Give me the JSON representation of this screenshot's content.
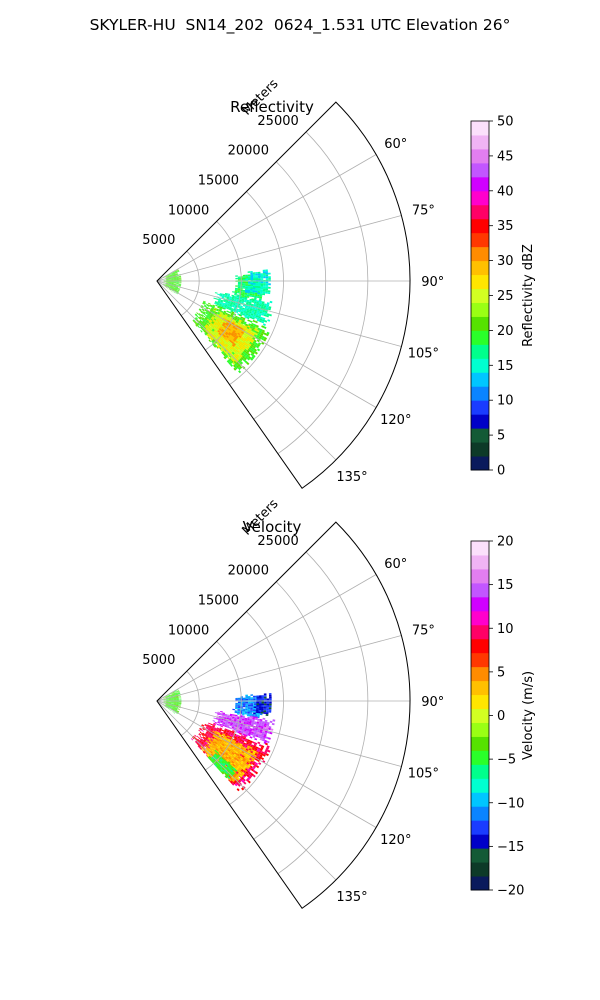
{
  "figure": {
    "title": "SKYLER-HU  SN14_202  0624_1.531 UTC Elevation 26°"
  },
  "chart_data": [
    {
      "type": "heatmap",
      "subtype": "polar-sector",
      "title": "Reflectivity",
      "radial_axis_label": "Meters",
      "radial_ticks": [
        5000,
        10000,
        15000,
        20000,
        25000
      ],
      "radial_tick_labels": [
        "5000",
        "10000",
        "15000",
        "20000",
        "25000"
      ],
      "radial_range": [
        0,
        30000
      ],
      "azimuth_range": [
        45,
        145
      ],
      "azimuth_ticks": [
        60,
        75,
        90,
        105,
        120,
        135
      ],
      "azimuth_tick_labels": [
        "60°",
        "75°",
        "90°",
        "105°",
        "120°",
        "135°"
      ],
      "grid": true,
      "colorbar": {
        "label": "Reflectivity dBZ",
        "range": [
          0,
          50
        ],
        "ticks": [
          0,
          5,
          10,
          15,
          20,
          25,
          30,
          35,
          40,
          45,
          50
        ],
        "tick_labels": [
          "0",
          "5",
          "10",
          "15",
          "20",
          "25",
          "30",
          "35",
          "40",
          "45",
          "50"
        ],
        "colors": [
          "#0a1a5c",
          "#0d3a28",
          "#135a36",
          "#0000c8",
          "#1a3cff",
          "#0a84ff",
          "#00c6ff",
          "#00ffd0",
          "#00ff8c",
          "#2aff2a",
          "#56e200",
          "#9aff14",
          "#d2ff22",
          "#ffe600",
          "#ffc000",
          "#ff8c00",
          "#ff3800",
          "#ff0000",
          "#ff0066",
          "#ff00cc",
          "#d000ff",
          "#c256ff",
          "#e27ef0",
          "#f0b4f4",
          "#fbe0fb"
        ]
      },
      "regions": [
        {
          "name": "north-echo",
          "r_range": [
            9000,
            12500
          ],
          "az_range": [
            86,
            101
          ],
          "value": 18
        },
        {
          "name": "north-echo-fringe",
          "r_range": [
            10500,
            13500
          ],
          "az_range": [
            84,
            97
          ],
          "value": 15
        },
        {
          "name": "central-echo",
          "r_range": [
            7000,
            14000
          ],
          "az_range": [
            100,
            112
          ],
          "value": 16
        },
        {
          "name": "main-cell-edge",
          "r_range": [
            6000,
            14500
          ],
          "az_range": [
            112,
            139
          ],
          "value": 20
        },
        {
          "name": "main-cell",
          "r_range": [
            7500,
            13500
          ],
          "az_range": [
            115,
            137
          ],
          "value": 26
        },
        {
          "name": "main-cell-core",
          "r_range": [
            9000,
            12000
          ],
          "az_range": [
            118,
            130
          ],
          "value": 30
        },
        {
          "name": "near-range-clutter",
          "r_range": [
            800,
            2700
          ],
          "az_range": [
            60,
            125
          ],
          "value": 20
        }
      ]
    },
    {
      "type": "heatmap",
      "subtype": "polar-sector",
      "title": "Velocity",
      "radial_axis_label": "Meters",
      "radial_ticks": [
        5000,
        10000,
        15000,
        20000,
        25000
      ],
      "radial_tick_labels": [
        "5000",
        "10000",
        "15000",
        "20000",
        "25000"
      ],
      "radial_range": [
        0,
        30000
      ],
      "azimuth_range": [
        45,
        145
      ],
      "azimuth_ticks": [
        60,
        75,
        90,
        105,
        120,
        135
      ],
      "azimuth_tick_labels": [
        "60°",
        "75°",
        "90°",
        "105°",
        "120°",
        "135°"
      ],
      "grid": true,
      "colorbar": {
        "label": "Velocity (m/s)",
        "range": [
          -20,
          20
        ],
        "ticks": [
          -20,
          -15,
          -10,
          -5,
          0,
          5,
          10,
          15,
          20
        ],
        "tick_labels": [
          "−20",
          "−15",
          "−10",
          "−5",
          "0",
          "5",
          "10",
          "15",
          "20"
        ],
        "colors": [
          "#0a1a5c",
          "#0d3a28",
          "#135a36",
          "#0000c8",
          "#1a3cff",
          "#0a84ff",
          "#00c6ff",
          "#00ffd0",
          "#00ff8c",
          "#2aff2a",
          "#56e200",
          "#9aff14",
          "#d2ff22",
          "#ffe600",
          "#ffc000",
          "#ff8c00",
          "#ff3800",
          "#ff0000",
          "#ff0066",
          "#ff00cc",
          "#d000ff",
          "#c256ff",
          "#e27ef0",
          "#f0b4f4",
          "#fbe0fb"
        ]
      },
      "regions": [
        {
          "name": "north-echo",
          "r_range": [
            9000,
            12500
          ],
          "az_range": [
            86,
            99
          ],
          "value": -11
        },
        {
          "name": "north-east-fringe",
          "r_range": [
            11500,
            13500
          ],
          "az_range": [
            86,
            97
          ],
          "value": -14
        },
        {
          "name": "central-echo",
          "r_range": [
            7000,
            14000
          ],
          "az_range": [
            99,
            111
          ],
          "value": 14
        },
        {
          "name": "main-cell-edge",
          "r_range": [
            6000,
            14500
          ],
          "az_range": [
            111,
            138
          ],
          "value": 9
        },
        {
          "name": "main-cell",
          "r_range": [
            7500,
            13500
          ],
          "az_range": [
            116,
            137
          ],
          "value": 3
        },
        {
          "name": "main-cell-south",
          "r_range": [
            9000,
            12500
          ],
          "az_range": [
            130,
            138
          ],
          "value": -5
        },
        {
          "name": "near-range-clutter",
          "r_range": [
            800,
            2700
          ],
          "az_range": [
            60,
            125
          ],
          "value": -4
        }
      ]
    }
  ]
}
